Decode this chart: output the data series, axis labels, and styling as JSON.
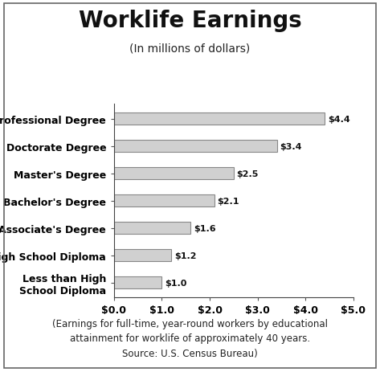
{
  "title": "Worklife Earnings",
  "subtitle": "(In millions of dollars)",
  "categories": [
    "Less than High\nSchool Diploma",
    "High School Diploma",
    "Associate's Degree",
    "Bachelor's Degree",
    "Master's Degree",
    "Doctorate Degree",
    "Professional Degree"
  ],
  "values": [
    1.0,
    1.2,
    1.6,
    2.1,
    2.5,
    3.4,
    4.4
  ],
  "bar_labels": [
    "$1.0",
    "$1.2",
    "$1.6",
    "$2.1",
    "$2.5",
    "$3.4",
    "$4.4"
  ],
  "bar_color": "#d0d0d0",
  "bar_edge_color": "#888888",
  "xlim": [
    0,
    5.0
  ],
  "xticks": [
    0.0,
    1.0,
    2.0,
    3.0,
    4.0,
    5.0
  ],
  "xtick_labels": [
    "$0.0",
    "$1.0",
    "$2.0",
    "$3.0",
    "$4.0",
    "$5.0"
  ],
  "caption": "(Earnings for full-time, year-round workers by educational\nattainment for worklife of approximately 40 years.\nSource: U.S. Census Bureau)",
  "background_color": "#ffffff",
  "bar_height": 0.45,
  "title_fontsize": 20,
  "subtitle_fontsize": 10,
  "label_fontsize": 9,
  "tick_fontsize": 9,
  "caption_fontsize": 8.5,
  "value_label_fontsize": 8
}
